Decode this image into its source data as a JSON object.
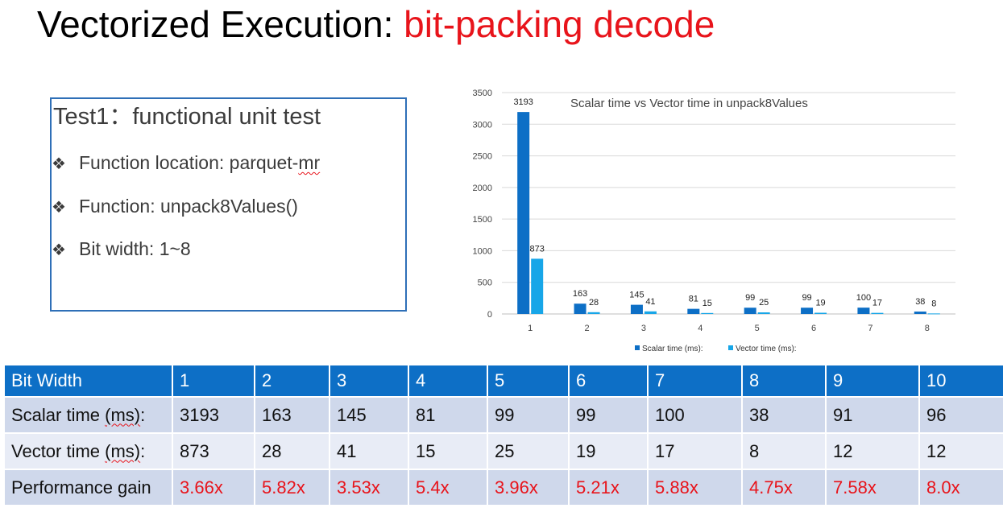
{
  "slide": {
    "title_main": "Vectorized Execution: ",
    "title_accent": "bit-packing decode",
    "accent_color": "#e8141b"
  },
  "textbox": {
    "heading": "Test1：functional unit test",
    "bullet_icon": "diamond-bullet-icon",
    "bullets": [
      {
        "prefix": "Function location: parquet-",
        "suffix": "mr"
      },
      {
        "prefix": "Function: unpack8Values()",
        "suffix": ""
      },
      {
        "prefix": "Bit width: 1~8",
        "suffix": ""
      }
    ]
  },
  "chart_data": {
    "type": "bar",
    "title": "Scalar time vs Vector time in unpack8Values",
    "categories": [
      "1",
      "2",
      "3",
      "4",
      "5",
      "6",
      "7",
      "8"
    ],
    "series": [
      {
        "name": "Scalar time (ms):",
        "color": "#0d6fc6",
        "values": [
          3193,
          163,
          145,
          81,
          99,
          99,
          100,
          38
        ]
      },
      {
        "name": "Vector time (ms):",
        "color": "#17a6e8",
        "values": [
          873,
          28,
          41,
          15,
          25,
          19,
          17,
          8
        ]
      }
    ],
    "ylim": [
      0,
      3500
    ],
    "yticks": [
      "0",
      "500",
      "1000",
      "1500",
      "2000",
      "2500",
      "3000",
      "3500"
    ],
    "grid": true,
    "legend_position": "bottom",
    "data_labels": true
  },
  "table": {
    "header": {
      "label": "Bit Width",
      "cells": [
        "1",
        "2",
        "3",
        "4",
        "5",
        "6",
        "7",
        "8",
        "9",
        "10"
      ]
    },
    "rows": [
      {
        "label_a": "Scalar time ",
        "label_b": "(ms)",
        "label_c": ":",
        "cells": [
          "3193",
          "163",
          "145",
          "81",
          "99",
          "99",
          "100",
          "38",
          "91",
          "96"
        ]
      },
      {
        "label_a": "Vector time ",
        "label_b": "(ms)",
        "label_c": ":",
        "cells": [
          "873",
          "28",
          "41",
          "15",
          "25",
          "19",
          "17",
          "8",
          "12",
          "12"
        ]
      },
      {
        "label_a": "Performance gain",
        "label_b": "",
        "label_c": "",
        "cells": [
          "3.66x",
          "5.82x",
          "3.53x",
          "5.4x",
          "3.96x",
          "5.21x",
          "5.88x",
          "4.75x",
          "7.58x",
          "8.0x"
        ]
      }
    ]
  }
}
